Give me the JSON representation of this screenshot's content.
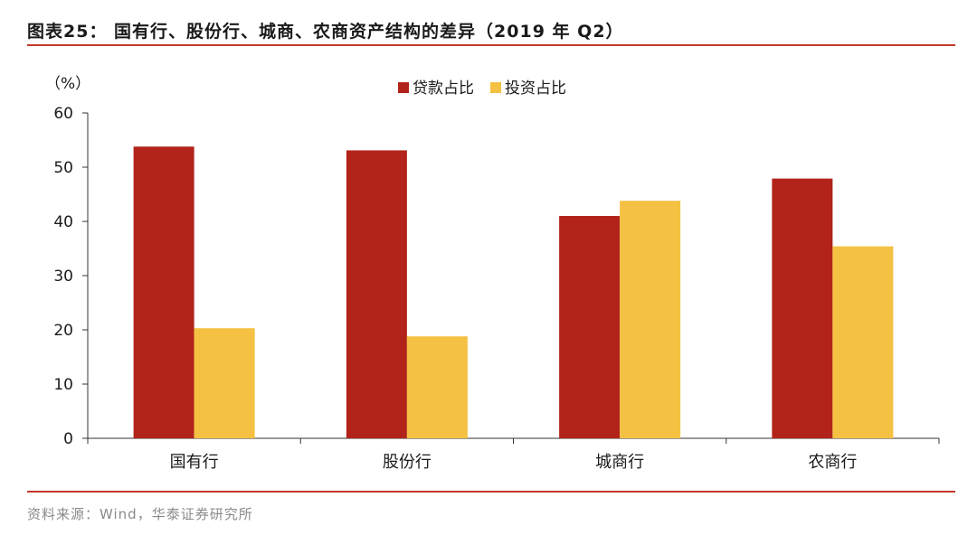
{
  "figure": {
    "title": "图表25：  国有行、股份行、城商、农商资产结构的差异（2019 年 Q2）",
    "source": "资料来源：Wind，华泰证券研究所"
  },
  "chart_data": {
    "type": "bar",
    "unit_label": "（%）",
    "categories": [
      "国有行",
      "股份行",
      "城商行",
      "农商行"
    ],
    "series": [
      {
        "name": "贷款占比",
        "color": "#b22319",
        "values": [
          53.8,
          53.1,
          41.0,
          47.9
        ]
      },
      {
        "name": "投资占比",
        "color": "#f5c142",
        "values": [
          20.3,
          18.8,
          43.8,
          35.4
        ]
      }
    ],
    "ylim": [
      0,
      60
    ],
    "yticks": [
      0,
      10,
      20,
      30,
      40,
      50,
      60
    ],
    "legend_position": "top",
    "grid": false
  }
}
